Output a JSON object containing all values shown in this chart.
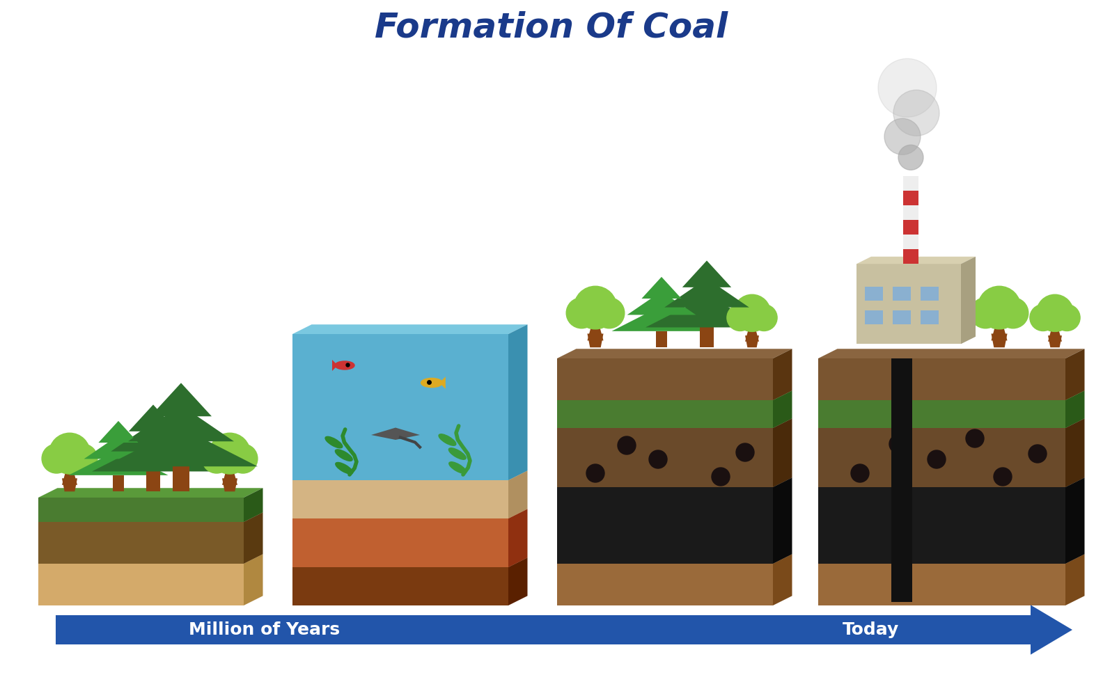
{
  "title": "Formation Of Coal",
  "title_color": "#1a3a8a",
  "title_fontsize": 36,
  "bg_color": "#ffffff",
  "arrow_color": "#2255aa",
  "arrow_text_color": "#ffffff",
  "arrow_label_left": "Million of Years",
  "arrow_label_right": "Today",
  "arrow_fontsize": 18,
  "colors": {
    "dark_green": "#2d6e2d",
    "mid_green": "#3a9e3a",
    "light_green": "#6dc46d",
    "bright_green": "#88cc44",
    "brown": "#8B4513",
    "light_brown": "#c8903a",
    "tan": "#d4b483",
    "dark_brown": "#5a3010",
    "black": "#111111",
    "water_blue": "#5ab0d0",
    "sky_blue": "#7ac8e0",
    "red_fish": "#cc3333",
    "yellow_fish": "#ddaa22",
    "gray_building": "#c8c0a8",
    "chimney_red": "#cc3333",
    "smoke_gray": "#aaaaaa"
  }
}
